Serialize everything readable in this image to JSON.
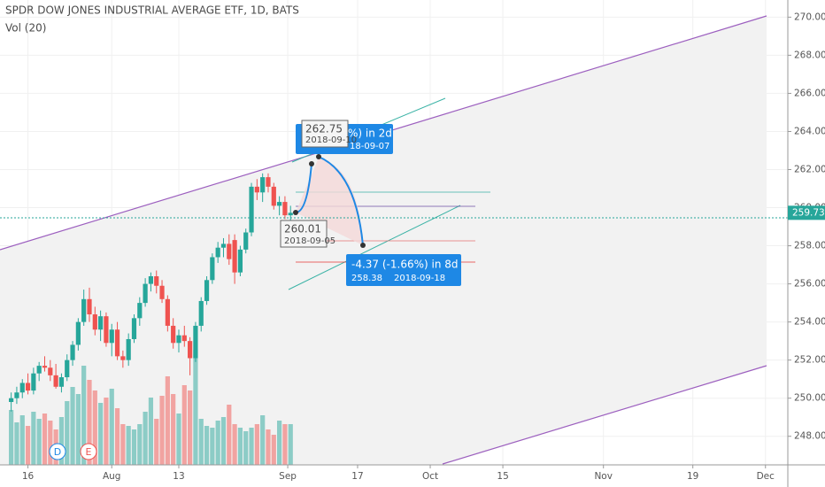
{
  "chart_data": {
    "type": "candlestick",
    "title": "SPDR DOW JONES INDUSTRIAL AVERAGE ETF, 1D, BATS",
    "subtitle": "Vol (20)",
    "open": [
      249.8,
      250.0,
      250.3,
      250.8,
      250.4,
      251.3,
      251.7,
      251.6,
      251.2,
      250.6,
      251.1,
      252.0,
      252.8,
      254.0,
      255.2,
      254.4,
      253.6,
      254.3,
      252.9,
      253.6,
      252.2,
      252.0,
      253.1,
      254.2,
      255.0,
      256.0,
      256.4,
      255.9,
      255.2,
      253.8,
      252.9,
      253.3,
      253.0,
      252.1,
      253.8,
      255.1,
      256.2,
      257.4,
      257.9,
      258.1,
      258.3,
      256.6,
      257.8,
      258.7,
      261.1,
      260.8,
      261.6,
      261.1,
      260.1,
      260.3,
      259.6
    ],
    "high": [
      250.3,
      250.6,
      251.0,
      251.3,
      251.6,
      251.9,
      252.2,
      252.0,
      251.8,
      251.3,
      252.3,
      253.0,
      254.2,
      255.7,
      255.8,
      254.8,
      254.6,
      254.5,
      253.9,
      254.0,
      252.5,
      253.4,
      254.4,
      255.3,
      256.3,
      256.6,
      256.7,
      256.2,
      255.4,
      254.2,
      253.6,
      253.8,
      253.2,
      254.0,
      255.3,
      256.4,
      257.6,
      258.2,
      258.4,
      258.6,
      258.6,
      258.0,
      258.9,
      261.3,
      261.5,
      261.8,
      261.8,
      261.3,
      260.6,
      260.6,
      260.1
    ],
    "low": [
      249.3,
      249.7,
      250.0,
      250.2,
      250.2,
      250.9,
      251.4,
      250.9,
      250.5,
      250.3,
      250.9,
      251.7,
      252.5,
      253.8,
      254.0,
      253.3,
      253.0,
      252.7,
      252.2,
      252.0,
      251.6,
      251.7,
      252.9,
      253.8,
      254.8,
      255.6,
      255.5,
      255.0,
      253.5,
      252.6,
      252.4,
      252.7,
      251.2,
      251.9,
      253.5,
      254.9,
      256.0,
      257.1,
      257.4,
      257.0,
      256.0,
      256.4,
      257.6,
      258.5,
      260.4,
      260.3,
      260.8,
      259.9,
      259.6,
      259.4,
      258.9
    ],
    "close": [
      250.0,
      250.3,
      250.8,
      250.4,
      251.3,
      251.7,
      251.6,
      251.2,
      250.6,
      251.1,
      252.0,
      252.8,
      254.0,
      255.2,
      254.4,
      253.6,
      254.3,
      252.9,
      253.6,
      252.2,
      252.0,
      253.1,
      254.2,
      255.0,
      256.0,
      256.4,
      255.9,
      255.2,
      253.8,
      252.9,
      253.3,
      253.0,
      252.1,
      253.8,
      255.1,
      256.2,
      257.4,
      257.9,
      258.1,
      257.3,
      256.6,
      257.8,
      258.7,
      261.1,
      260.8,
      261.6,
      261.1,
      260.1,
      260.3,
      259.6,
      259.73
    ],
    "volume": [
      3.1,
      2.4,
      2.8,
      2.2,
      3.0,
      2.6,
      2.9,
      2.5,
      2.0,
      2.7,
      3.6,
      4.4,
      4.0,
      5.6,
      4.8,
      4.2,
      3.5,
      3.8,
      4.3,
      3.2,
      2.3,
      2.2,
      2.0,
      2.3,
      3.0,
      3.8,
      2.6,
      3.9,
      5.0,
      4.0,
      2.9,
      4.5,
      4.2,
      6.5,
      2.6,
      2.2,
      2.1,
      2.5,
      2.7,
      3.4,
      2.3,
      2.1,
      1.9,
      2.1,
      2.3,
      2.8,
      2.0,
      1.7,
      2.5,
      2.3,
      2.3
    ],
    "up_color": "#26a69a",
    "down_color": "#ef5350",
    "ylim": [
      246.5,
      270.9
    ],
    "yticks": [
      {
        "value": 248,
        "label": "248.00"
      },
      {
        "value": 250,
        "label": "250.00"
      },
      {
        "value": 252,
        "label": "252.00"
      },
      {
        "value": 254,
        "label": "254.00"
      },
      {
        "value": 256,
        "label": "256.00"
      },
      {
        "value": 258,
        "label": "258.00"
      },
      {
        "value": 260,
        "label": "260.00"
      },
      {
        "value": 262,
        "label": "262.00"
      },
      {
        "value": 264,
        "label": "264.00"
      },
      {
        "value": 266,
        "label": "266.00"
      },
      {
        "value": 268,
        "label": "268.00"
      },
      {
        "value": 270,
        "label": "270.00"
      }
    ],
    "xlim": [
      -2,
      139
    ],
    "xticks": [
      {
        "value": 3,
        "label": "16"
      },
      {
        "value": 18,
        "label": "Aug"
      },
      {
        "value": 30,
        "label": "13"
      },
      {
        "value": 49.5,
        "label": "Sep"
      },
      {
        "value": 62,
        "label": "17"
      },
      {
        "value": 75,
        "label": "Oct"
      },
      {
        "value": 88,
        "label": "15"
      },
      {
        "value": 106,
        "label": "Nov"
      },
      {
        "value": 122,
        "label": "19"
      },
      {
        "value": 135,
        "label": "Dec"
      }
    ],
    "last_price": {
      "value": 259.73,
      "label": "259.73"
    },
    "markers": [
      "D",
      "E"
    ],
    "annotations": [
      {
        "main": "262.75",
        "sub": "2018-09-10"
      },
      {
        "main": "%) in 2d",
        "sub": "18-09-07"
      },
      {
        "main": "260.01",
        "sub": "2018-09-05"
      },
      {
        "main": "-4.37 (-1.66%) in 8d",
        "sub": "258.38",
        "date": "2018-09-18"
      }
    ]
  }
}
